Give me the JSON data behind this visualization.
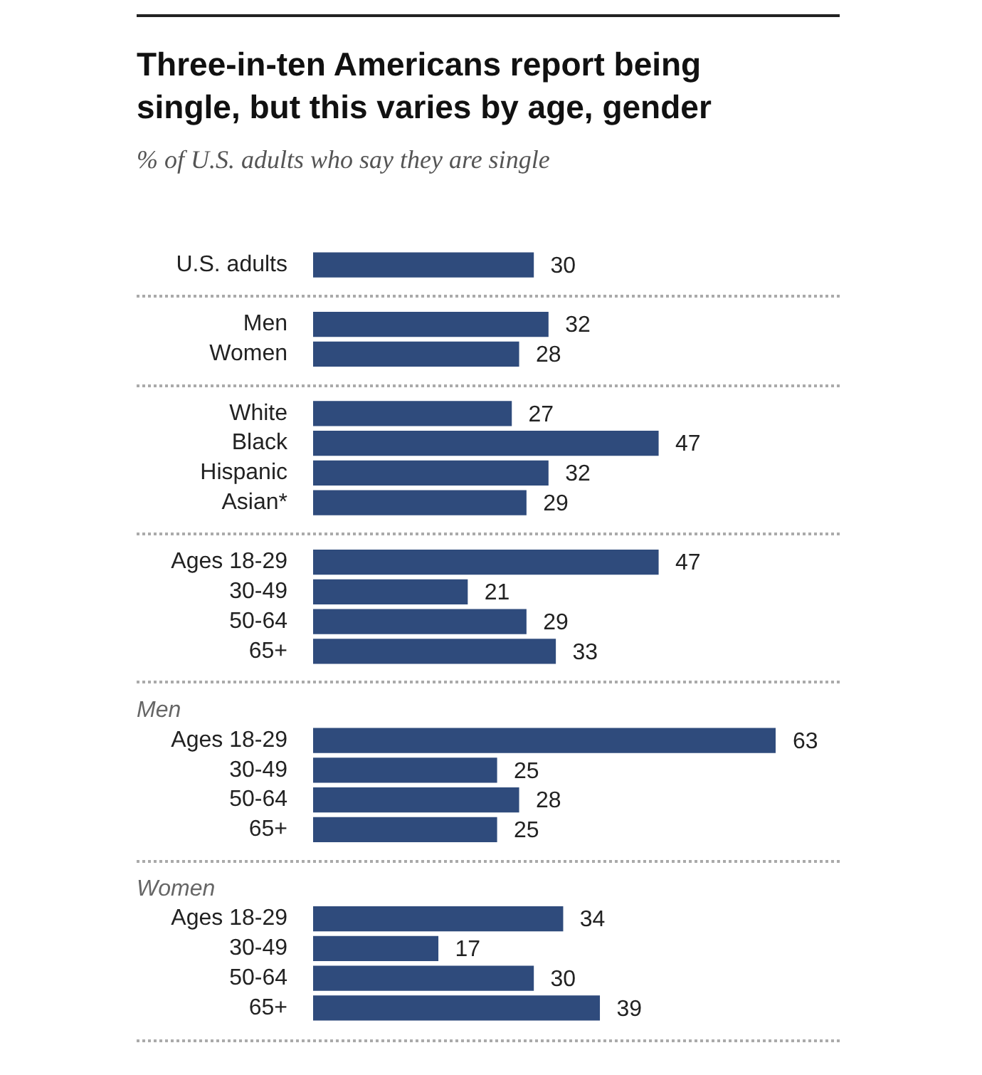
{
  "chart_data": {
    "type": "bar",
    "orientation": "horizontal",
    "title": "Three-in-ten Americans report being single, but this varies by age, gender",
    "subtitle": "% of U.S. adults who say they are single",
    "categories": [
      "U.S. adults",
      null,
      "Men",
      "Women",
      null,
      "White",
      "Black",
      "Hispanic",
      "Asian*",
      null,
      "Ages 18-29",
      "30-49",
      "50-64",
      "65+",
      null,
      null,
      "Ages 18-29",
      "30-49",
      "50-64",
      "65+",
      null,
      null,
      "Ages 18-29",
      "30-49",
      "50-64",
      "65+"
    ],
    "values": [
      30,
      null,
      32,
      28,
      null,
      27,
      47,
      32,
      29,
      null,
      47,
      21,
      29,
      33,
      null,
      null,
      63,
      25,
      28,
      25,
      null,
      null,
      34,
      17,
      30,
      39
    ],
    "color": "#2f4b7c",
    "data_labels": true,
    "annotations": [
      "Men",
      "Women"
    ]
  }
}
